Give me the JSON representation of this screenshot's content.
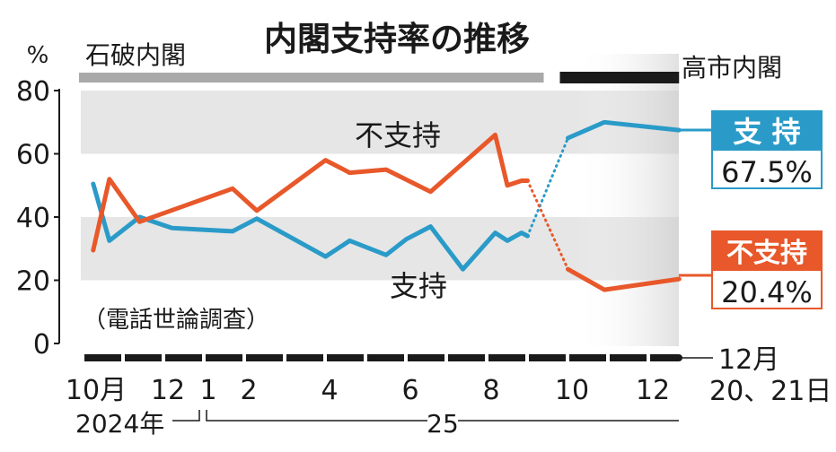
{
  "chart_data": {
    "type": "line",
    "title": "内閣支持率の推移",
    "ylabel": "%",
    "ylim": [
      0,
      80
    ],
    "yticks": [
      0,
      20,
      40,
      60,
      80
    ],
    "bands": [
      [
        20,
        40
      ],
      [
        60,
        80
      ]
    ],
    "note": "（電話世論調査）",
    "eras": [
      {
        "label": "石破内閣",
        "x_start": 0,
        "x_end": 11.3,
        "color": "#a9a9a9"
      },
      {
        "label": "高市内閣",
        "x_start": 11.9,
        "x_end": 14.65,
        "color": "#1a1a1a"
      }
    ],
    "x_ticks": [
      {
        "x": 0,
        "label": "10月"
      },
      {
        "x": 2,
        "label": "12"
      },
      {
        "x": 3,
        "label": "1"
      },
      {
        "x": 4,
        "label": "2"
      },
      {
        "x": 6,
        "label": "4"
      },
      {
        "x": 8,
        "label": "6"
      },
      {
        "x": 10,
        "label": "8"
      },
      {
        "x": 12,
        "label": "10"
      },
      {
        "x": 14,
        "label": "12"
      }
    ],
    "year_labels": [
      "2024年",
      "25"
    ],
    "latest_label": [
      "12月",
      "20、21日"
    ],
    "series": [
      {
        "name": "支持",
        "color": "#2a9bc8",
        "segments": [
          {
            "style": "solid",
            "x": [
              0.15,
              0.55,
              1.3,
              2.1,
              3.6,
              4.2,
              5.9,
              6.5,
              7.4,
              7.9,
              8.5,
              9.3,
              10.1,
              10.4,
              10.75,
              10.9
            ],
            "values": [
              50.5,
              32.5,
              40,
              36.5,
              35.5,
              39.5,
              27.5,
              32.5,
              28,
              33,
              37,
              23.5,
              35,
              32.5,
              35,
              34
            ]
          },
          {
            "style": "dotted",
            "x": [
              10.9,
              11.9
            ],
            "values": [
              34,
              65
            ]
          },
          {
            "style": "solid",
            "x": [
              11.9,
              12.8,
              14.65
            ],
            "values": [
              65,
              70,
              67.5
            ]
          }
        ],
        "latest": {
          "label": "支 持",
          "value": "67.5%"
        },
        "inline_label": "支持"
      },
      {
        "name": "不支持",
        "color": "#e8582a",
        "segments": [
          {
            "style": "solid",
            "x": [
              0.15,
              0.55,
              1.3,
              3.6,
              4.2,
              5.9,
              6.5,
              7.4,
              8.5,
              9.3,
              10.1,
              10.4,
              10.75,
              10.9
            ],
            "values": [
              29.5,
              52,
              38.5,
              49,
              42,
              58,
              54,
              55,
              48,
              57,
              66,
              50,
              51.5,
              51.5
            ]
          },
          {
            "style": "dotted",
            "x": [
              10.9,
              11.9
            ],
            "values": [
              51.5,
              23.5
            ]
          },
          {
            "style": "solid",
            "x": [
              11.9,
              12.8,
              14.65
            ],
            "values": [
              23.5,
              17,
              20.4
            ]
          }
        ],
        "latest": {
          "label": "不支持",
          "value": "20.4%"
        },
        "inline_label": "不支持"
      }
    ]
  }
}
